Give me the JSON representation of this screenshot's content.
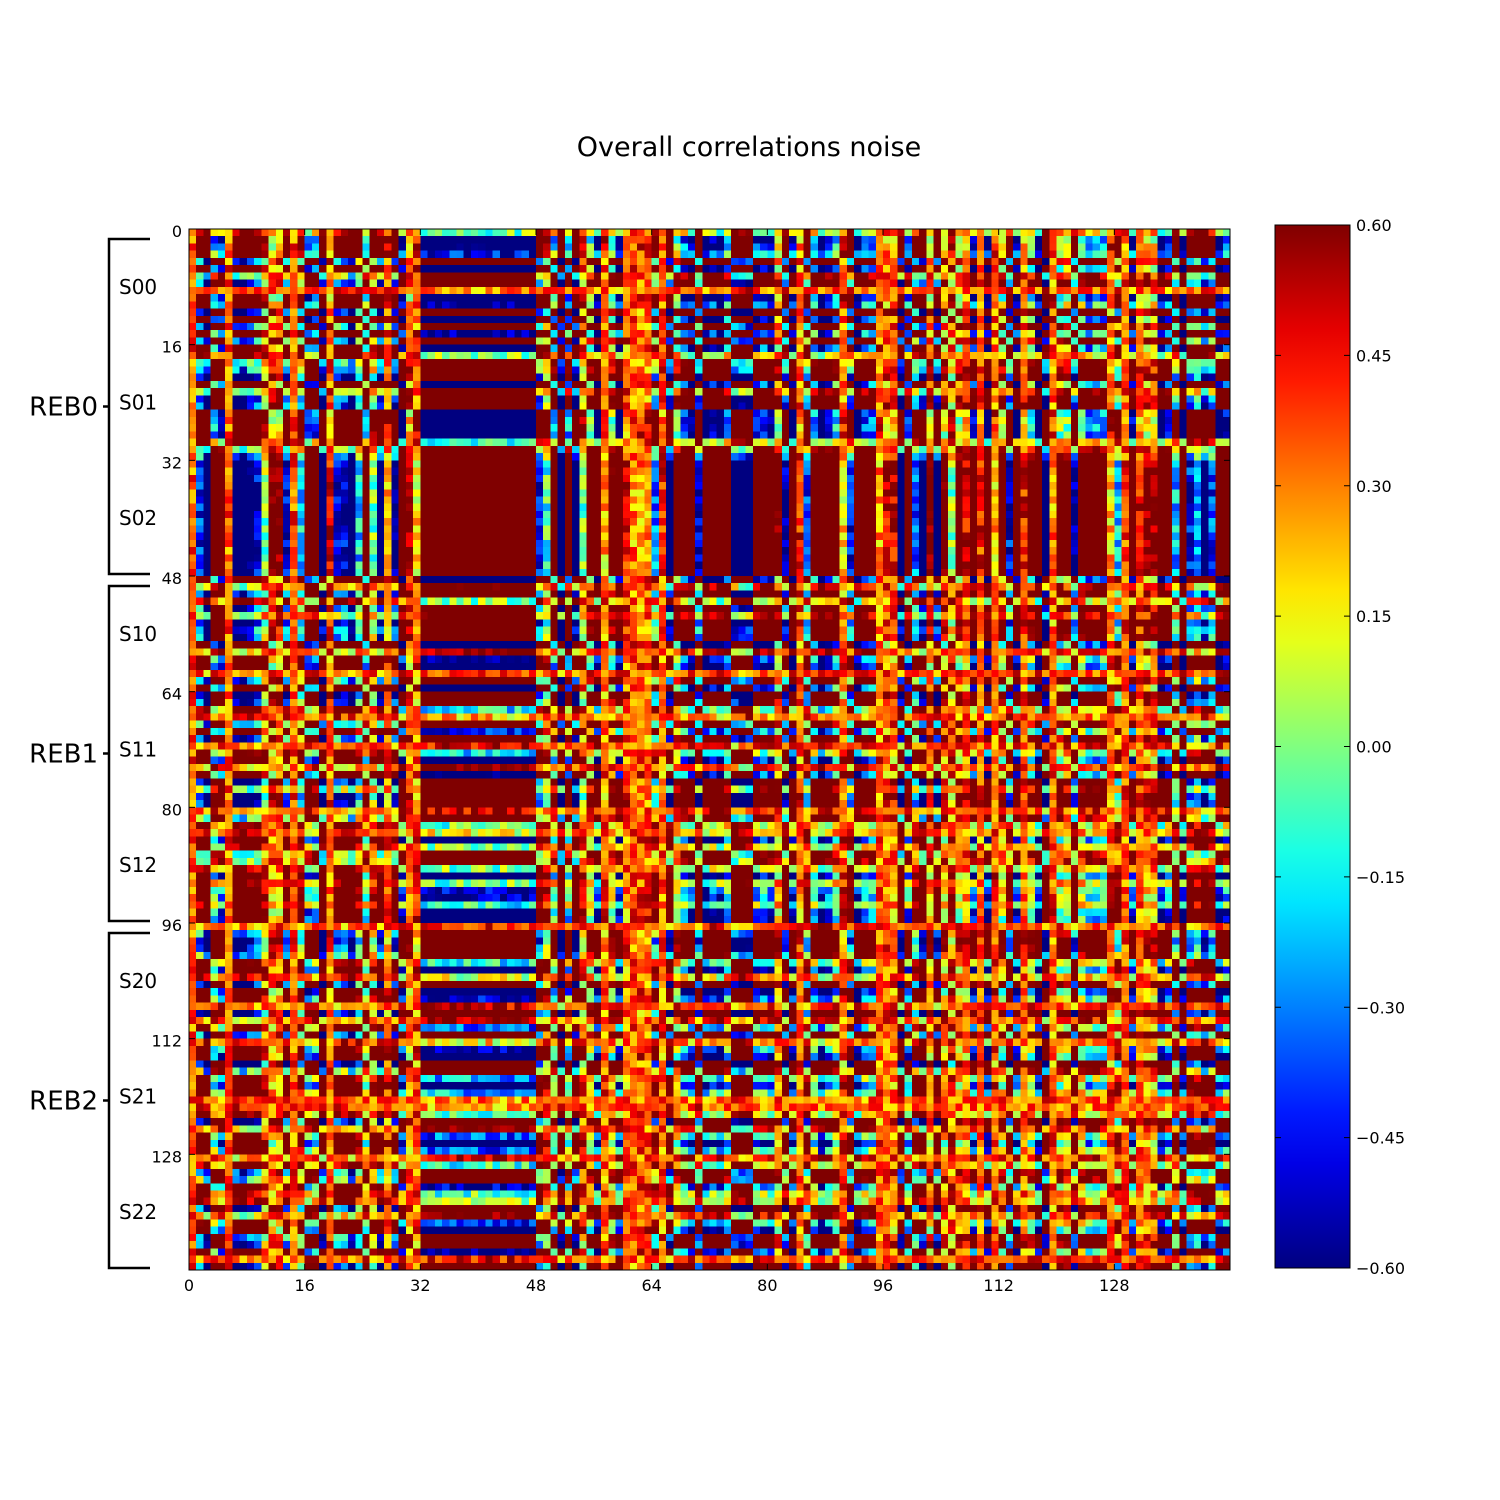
{
  "chart_data": {
    "type": "heatmap",
    "title": "Overall correlations noise",
    "matrix_size": 144,
    "x_ticks": [
      "0",
      "16",
      "32",
      "48",
      "64",
      "80",
      "96",
      "112",
      "128"
    ],
    "y_ticks": [
      "0",
      "16",
      "32",
      "48",
      "64",
      "80",
      "96",
      "112",
      "128"
    ],
    "colorbar": {
      "colormap": "jet",
      "vmin": -0.6,
      "vmax": 0.6,
      "ticks": [
        "0.60",
        "0.45",
        "0.30",
        "0.15",
        "0.00",
        "−0.15",
        "−0.30",
        "−0.45",
        "−0.60"
      ]
    },
    "groups": [
      {
        "label": "REB0",
        "range": [
          0,
          48
        ],
        "segments": [
          {
            "label": "S00",
            "range": [
              0,
              16
            ]
          },
          {
            "label": "S01",
            "range": [
              16,
              32
            ]
          },
          {
            "label": "S02",
            "range": [
              32,
              48
            ]
          }
        ]
      },
      {
        "label": "REB1",
        "range": [
          48,
          96
        ],
        "segments": [
          {
            "label": "S10",
            "range": [
              48,
              64
            ]
          },
          {
            "label": "S11",
            "range": [
              64,
              80
            ]
          },
          {
            "label": "S12",
            "range": [
              80,
              96
            ]
          }
        ]
      },
      {
        "label": "REB2",
        "range": [
          96,
          144
        ],
        "segments": [
          {
            "label": "S20",
            "range": [
              96,
              112
            ]
          },
          {
            "label": "S21",
            "range": [
              112,
              128
            ]
          },
          {
            "label": "S22",
            "range": [
              128,
              144
            ]
          }
        ]
      }
    ]
  }
}
